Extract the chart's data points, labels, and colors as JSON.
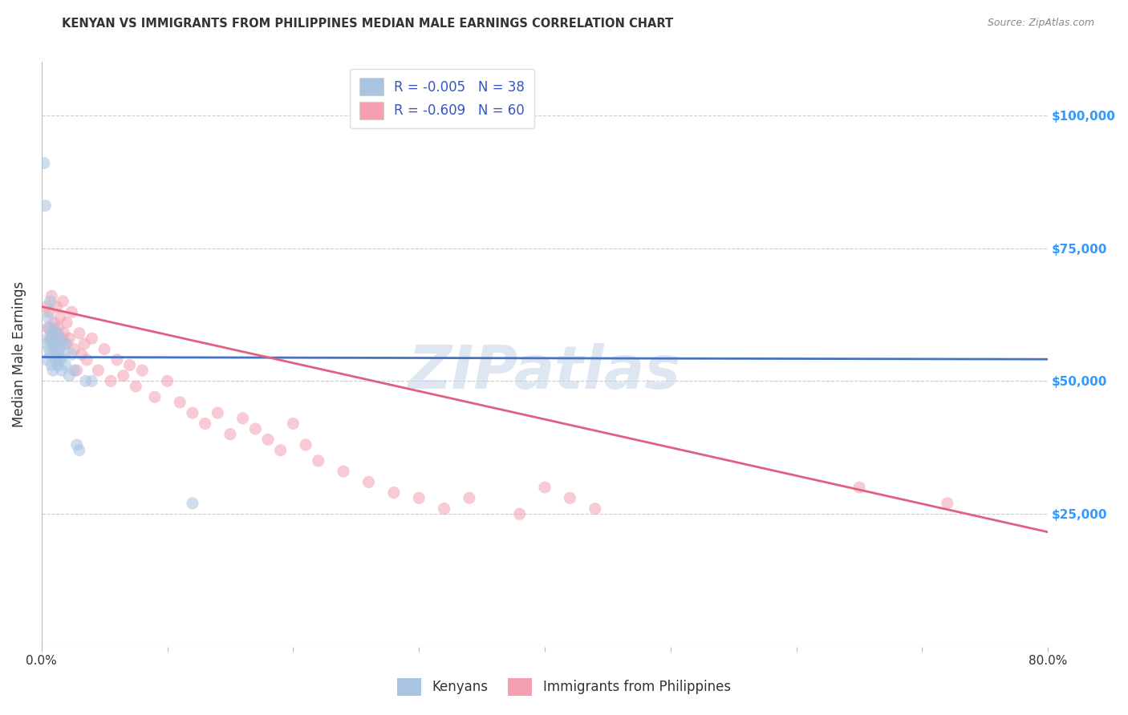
{
  "title": "KENYAN VS IMMIGRANTS FROM PHILIPPINES MEDIAN MALE EARNINGS CORRELATION CHART",
  "source": "Source: ZipAtlas.com",
  "ylabel": "Median Male Earnings",
  "xlim": [
    0,
    0.8
  ],
  "ylim": [
    0,
    110000
  ],
  "yticks": [
    0,
    25000,
    50000,
    75000,
    100000
  ],
  "ytick_labels": [
    "",
    "$25,000",
    "$50,000",
    "$75,000",
    "$100,000"
  ],
  "xticks": [
    0.0,
    0.1,
    0.2,
    0.3,
    0.4,
    0.5,
    0.6,
    0.7,
    0.8
  ],
  "xtick_labels": [
    "0.0%",
    "",
    "",
    "",
    "",
    "",
    "",
    "",
    "80.0%"
  ],
  "legend_labels": [
    "Kenyans",
    "Immigrants from Philippines"
  ],
  "R_kenyan": -0.005,
  "N_kenyan": 38,
  "R_phil": -0.609,
  "N_phil": 60,
  "kenyan_color": "#a8c4e0",
  "phil_color": "#f4a0b0",
  "kenyan_line_color": "#4472c4",
  "phil_line_color": "#e06080",
  "title_color": "#333333",
  "background_color": "#ffffff",
  "grid_color": "#cccccc",
  "watermark_color": "#c8d8e8",
  "watermark_text": "ZIPatlas",
  "right_tick_color": "#3399ff",
  "legend_text_color": "#3355cc",
  "scatter_size": 120,
  "scatter_alpha": 0.55,
  "kenyan_x": [
    0.002,
    0.003,
    0.004,
    0.004,
    0.005,
    0.005,
    0.006,
    0.006,
    0.007,
    0.007,
    0.008,
    0.008,
    0.009,
    0.009,
    0.01,
    0.01,
    0.011,
    0.011,
    0.012,
    0.012,
    0.013,
    0.013,
    0.014,
    0.015,
    0.015,
    0.016,
    0.017,
    0.018,
    0.019,
    0.02,
    0.022,
    0.024,
    0.026,
    0.028,
    0.03,
    0.035,
    0.04,
    0.12
  ],
  "kenyan_y": [
    91000,
    83000,
    57000,
    54000,
    62000,
    58000,
    60000,
    56000,
    65000,
    55000,
    59000,
    53000,
    57000,
    52000,
    60000,
    56000,
    55000,
    58000,
    54000,
    57000,
    53000,
    59000,
    56000,
    54000,
    58000,
    52000,
    57000,
    55000,
    53000,
    57000,
    51000,
    55000,
    52000,
    38000,
    37000,
    50000,
    50000,
    27000
  ],
  "phil_x": [
    0.004,
    0.005,
    0.006,
    0.007,
    0.008,
    0.009,
    0.01,
    0.011,
    0.012,
    0.013,
    0.014,
    0.015,
    0.016,
    0.017,
    0.018,
    0.019,
    0.02,
    0.022,
    0.024,
    0.026,
    0.028,
    0.03,
    0.032,
    0.034,
    0.036,
    0.04,
    0.045,
    0.05,
    0.055,
    0.06,
    0.065,
    0.07,
    0.075,
    0.08,
    0.09,
    0.1,
    0.11,
    0.12,
    0.13,
    0.14,
    0.15,
    0.16,
    0.17,
    0.18,
    0.19,
    0.2,
    0.21,
    0.22,
    0.24,
    0.26,
    0.28,
    0.3,
    0.32,
    0.34,
    0.38,
    0.4,
    0.42,
    0.44,
    0.65,
    0.72
  ],
  "phil_y": [
    64000,
    60000,
    63000,
    58000,
    66000,
    57000,
    61000,
    59000,
    64000,
    60000,
    55000,
    62000,
    58000,
    65000,
    59000,
    57000,
    61000,
    58000,
    63000,
    56000,
    52000,
    59000,
    55000,
    57000,
    54000,
    58000,
    52000,
    56000,
    50000,
    54000,
    51000,
    53000,
    49000,
    52000,
    47000,
    50000,
    46000,
    44000,
    42000,
    44000,
    40000,
    43000,
    41000,
    39000,
    37000,
    42000,
    38000,
    35000,
    33000,
    31000,
    29000,
    28000,
    26000,
    28000,
    25000,
    30000,
    28000,
    26000,
    30000,
    27000
  ]
}
